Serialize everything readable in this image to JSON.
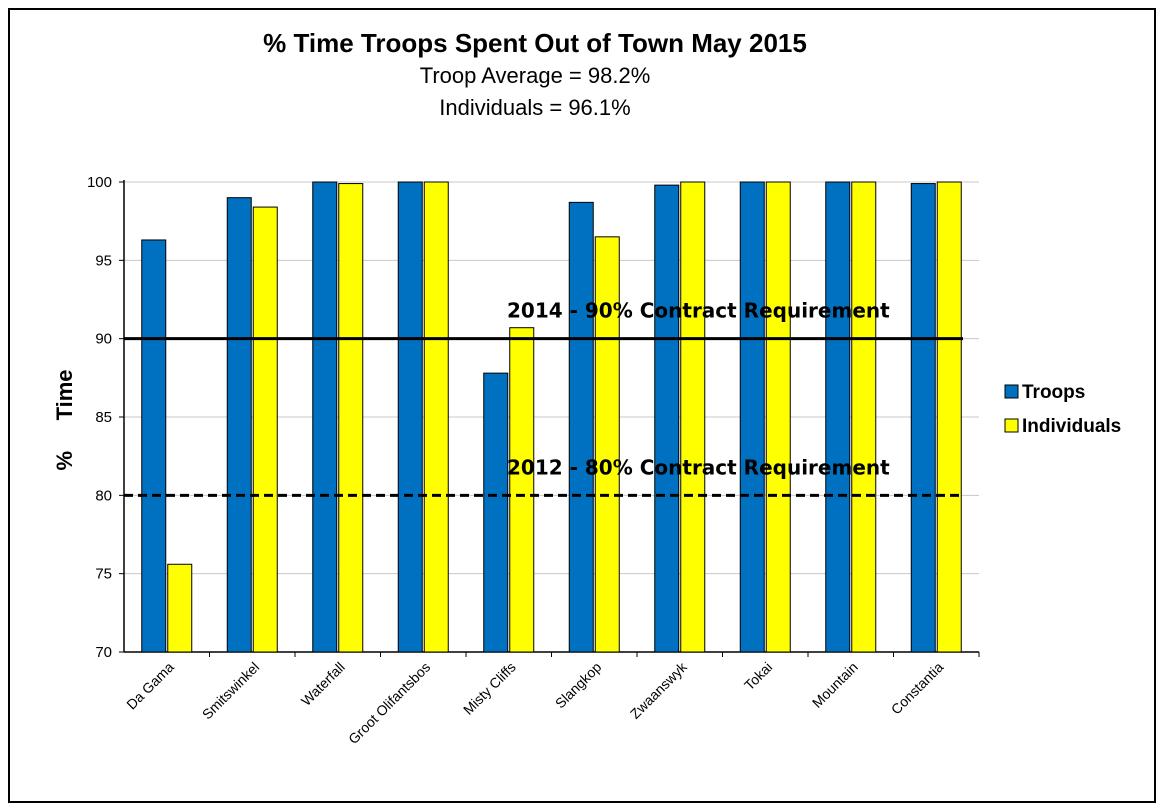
{
  "chart_data": {
    "type": "bar",
    "title": "% Time Troops Spent Out of Town May 2015",
    "subtitles": [
      "Troop Average = 98.2%",
      "Individuals = 96.1%"
    ],
    "ylabel": "%     Time",
    "xlabel": "",
    "ylim": [
      70,
      100
    ],
    "yticks": [
      70,
      75,
      80,
      85,
      90,
      95,
      100
    ],
    "grid": true,
    "legend_position": "right",
    "categories": [
      "Da Gama",
      "Smitswinkel",
      "Waterfall",
      "Groot Olifantsbos",
      "Misty Cliffs",
      "Slangkop",
      "Zwaanswyk",
      "Tokai",
      "Mountain",
      "Constantia"
    ],
    "series": [
      {
        "name": "Troops",
        "color": "#0070C0",
        "values": [
          96.3,
          99.0,
          100,
          100,
          87.8,
          98.7,
          99.8,
          100,
          100,
          99.9
        ]
      },
      {
        "name": "Individuals",
        "color": "#FFFF00",
        "values": [
          75.6,
          98.4,
          99.9,
          100,
          90.7,
          96.5,
          100,
          100,
          100,
          100
        ]
      }
    ],
    "reference_lines": [
      {
        "label": "2014 - 90% Contract Requirement",
        "value": 90,
        "style": "solid"
      },
      {
        "label": "2012 - 80% Contract Requirement",
        "value": 80,
        "style": "dashed"
      }
    ]
  }
}
